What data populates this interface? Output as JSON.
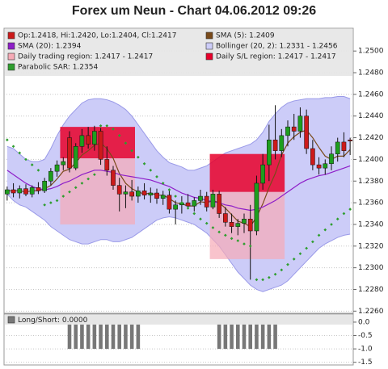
{
  "chart_data": [
    {
      "type": "candlestick",
      "title": "Forex um Neun - Chart 04.06.2012 09:26",
      "ylim": [
        1.2258,
        1.2521
      ],
      "yticks": [
        {
          "value": 1.226,
          "label": "1.2260"
        },
        {
          "value": 1.228,
          "label": "1.2280"
        },
        {
          "value": 1.23,
          "label": "1.2300"
        },
        {
          "value": 1.232,
          "label": "1.2320"
        },
        {
          "value": 1.234,
          "label": "1.2340"
        },
        {
          "value": 1.236,
          "label": "1.2360"
        },
        {
          "value": 1.238,
          "label": "1.2380"
        },
        {
          "value": 1.24,
          "label": "1.2400"
        },
        {
          "value": 1.242,
          "label": "1.2420"
        },
        {
          "value": 1.244,
          "label": "1.2440"
        },
        {
          "value": 1.246,
          "label": "1.2460"
        },
        {
          "value": 1.248,
          "label": "1.2480"
        },
        {
          "value": 1.25,
          "label": "1.2500"
        }
      ],
      "grid": true,
      "candles": {
        "name": "Op:1.2418, Hi:1.2420, Lo:1.2404, Cl:1.2417",
        "up_color": "#1e9e1e",
        "down_color": "#cc1a1a",
        "open": [
          1.2368,
          1.2372,
          1.2369,
          1.2373,
          1.2368,
          1.2374,
          1.2371,
          1.238,
          1.2389,
          1.2395,
          1.242,
          1.2392,
          1.2412,
          1.2422,
          1.2414,
          1.2426,
          1.24,
          1.239,
          1.2376,
          1.2368,
          1.237,
          1.2366,
          1.2371,
          1.2367,
          1.2369,
          1.2364,
          1.2367,
          1.2354,
          1.2358,
          1.236,
          1.2357,
          1.2362,
          1.2366,
          1.2356,
          1.2368,
          1.235,
          1.2342,
          1.2338,
          1.2341,
          1.2345,
          1.2334,
          1.2378,
          1.2395,
          1.2418,
          1.2408,
          1.2422,
          1.243,
          1.2426,
          1.244,
          1.241,
          1.2395,
          1.2392,
          1.2396,
          1.2405,
          1.2416,
          1.2418
        ],
        "high": [
          1.2375,
          1.2378,
          1.2376,
          1.2377,
          1.2376,
          1.2379,
          1.2383,
          1.2392,
          1.2399,
          1.2402,
          1.2426,
          1.2415,
          1.2428,
          1.243,
          1.2431,
          1.2429,
          1.2412,
          1.2394,
          1.2383,
          1.2376,
          1.2381,
          1.2375,
          1.2378,
          1.2374,
          1.2373,
          1.2371,
          1.2372,
          1.2362,
          1.2366,
          1.2368,
          1.2365,
          1.2372,
          1.237,
          1.2372,
          1.2371,
          1.2356,
          1.235,
          1.2345,
          1.235,
          1.2358,
          1.2385,
          1.2405,
          1.2432,
          1.245,
          1.2428,
          1.2436,
          1.2442,
          1.2448,
          1.2446,
          1.2418,
          1.2402,
          1.24,
          1.2412,
          1.242,
          1.2425,
          1.242
        ],
        "low": [
          1.2362,
          1.2365,
          1.2364,
          1.2366,
          1.2365,
          1.2368,
          1.2369,
          1.2376,
          1.2384,
          1.239,
          1.2388,
          1.239,
          1.2406,
          1.241,
          1.2408,
          1.2395,
          1.2385,
          1.2372,
          1.2352,
          1.2355,
          1.2362,
          1.236,
          1.2363,
          1.236,
          1.2359,
          1.2358,
          1.235,
          1.234,
          1.235,
          1.2354,
          1.2352,
          1.2358,
          1.2352,
          1.2354,
          1.2346,
          1.2338,
          1.2332,
          1.233,
          1.2332,
          1.2289,
          1.233,
          1.2372,
          1.238,
          1.24,
          1.2402,
          1.2412,
          1.2418,
          1.242,
          1.2405,
          1.239,
          1.2386,
          1.2386,
          1.239,
          1.2398,
          1.2402,
          1.2404
        ],
        "close": [
          1.2372,
          1.2369,
          1.2373,
          1.2368,
          1.2374,
          1.2371,
          1.238,
          1.2389,
          1.2395,
          1.2398,
          1.2392,
          1.2412,
          1.2422,
          1.2414,
          1.2426,
          1.24,
          1.239,
          1.2376,
          1.2368,
          1.237,
          1.2366,
          1.2371,
          1.2367,
          1.2369,
          1.2364,
          1.2367,
          1.2354,
          1.2358,
          1.236,
          1.2357,
          1.2362,
          1.2366,
          1.2356,
          1.2368,
          1.235,
          1.2342,
          1.2338,
          1.2341,
          1.2345,
          1.2334,
          1.2378,
          1.2395,
          1.2418,
          1.2408,
          1.2422,
          1.243,
          1.2426,
          1.244,
          1.241,
          1.2395,
          1.2392,
          1.2396,
          1.2405,
          1.2416,
          1.2408,
          1.2417
        ]
      },
      "series": [
        {
          "name": "SMA (5): 1.2409",
          "color": "#7a4a1a",
          "values": [
            1.2371,
            1.2371,
            1.2371,
            1.237,
            1.2371,
            1.2371,
            1.2373,
            1.2376,
            1.2382,
            1.2389,
            1.2391,
            1.2397,
            1.2404,
            1.2408,
            1.2413,
            1.2415,
            1.241,
            1.2401,
            1.2387,
            1.2378,
            1.2373,
            1.237,
            1.2368,
            1.2369,
            1.2367,
            1.2367,
            1.2364,
            1.236,
            1.2359,
            1.2357,
            1.2357,
            1.2361,
            1.236,
            1.2362,
            1.236,
            1.2355,
            1.2349,
            1.2343,
            1.2341,
            1.2338,
            1.2347,
            1.2359,
            1.2374,
            1.2387,
            1.2404,
            1.2415,
            1.2421,
            1.2425,
            1.2427,
            1.242,
            1.2411,
            1.2403,
            1.24,
            1.2403,
            1.2403,
            1.2409
          ]
        },
        {
          "name": "SMA (20): 1.2394",
          "color": "#8e1ec8",
          "values": [
            1.239,
            1.2386,
            1.2382,
            1.2378,
            1.2375,
            1.2373,
            1.2372,
            1.2373,
            1.2375,
            1.2378,
            1.238,
            1.2383,
            1.2386,
            1.2388,
            1.239,
            1.239,
            1.2389,
            1.2388,
            1.2386,
            1.2385,
            1.2384,
            1.2383,
            1.2382,
            1.2381,
            1.2379,
            1.2377,
            1.2375,
            1.2372,
            1.2369,
            1.2367,
            1.2365,
            1.2364,
            1.2362,
            1.2361,
            1.236,
            1.2358,
            1.2357,
            1.2355,
            1.2354,
            1.2353,
            1.2354,
            1.2356,
            1.2359,
            1.2362,
            1.2366,
            1.237,
            1.2374,
            1.2378,
            1.2381,
            1.2383,
            1.2385,
            1.2386,
            1.2388,
            1.239,
            1.2392,
            1.2394
          ]
        }
      ],
      "bollinger": {
        "name": "Bollinger (20, 2): 1.2331 - 1.2456",
        "color": "#9a9ae8",
        "fill": "#ccccf8",
        "upper": [
          1.2412,
          1.241,
          1.2405,
          1.24,
          1.2398,
          1.2398,
          1.24,
          1.241,
          1.2422,
          1.2432,
          1.244,
          1.2446,
          1.2452,
          1.2455,
          1.2456,
          1.2456,
          1.2455,
          1.2453,
          1.245,
          1.2446,
          1.244,
          1.2432,
          1.2424,
          1.2416,
          1.2408,
          1.2402,
          1.2397,
          1.2395,
          1.2393,
          1.239,
          1.239,
          1.2392,
          1.2394,
          1.2398,
          1.2402,
          1.2406,
          1.2408,
          1.241,
          1.2412,
          1.2414,
          1.2418,
          1.2425,
          1.2435,
          1.2442,
          1.2448,
          1.2452,
          1.2454,
          1.2455,
          1.2456,
          1.2456,
          1.2456,
          1.2457,
          1.2457,
          1.2458,
          1.2458,
          1.2456
        ],
        "lower": [
          1.2368,
          1.2362,
          1.2358,
          1.2356,
          1.2352,
          1.2348,
          1.2344,
          1.2338,
          1.2334,
          1.233,
          1.2326,
          1.2324,
          1.2322,
          1.2322,
          1.2324,
          1.2326,
          1.2326,
          1.2324,
          1.2324,
          1.2326,
          1.2328,
          1.2332,
          1.2336,
          1.234,
          1.2344,
          1.2346,
          1.2347,
          1.2346,
          1.2344,
          1.2342,
          1.234,
          1.2336,
          1.2332,
          1.2326,
          1.232,
          1.2312,
          1.2304,
          1.2296,
          1.229,
          1.2284,
          1.228,
          1.2278,
          1.228,
          1.2282,
          1.2284,
          1.2288,
          1.2294,
          1.23,
          1.2306,
          1.2312,
          1.2318,
          1.2322,
          1.2325,
          1.2328,
          1.233,
          1.2331
        ]
      },
      "regions": {
        "trading_name": "Daily trading region: 1.2417 - 1.2417",
        "trading_color": "#f6aab6",
        "sl_name": "Daily S/L region: 1.2417 - 1.2417",
        "sl_color": "#e8002a",
        "blocks": [
          {
            "start": 8.5,
            "end": 20.5,
            "trading": [
              1.234,
              1.2401
            ],
            "sl": [
              1.2401,
              1.243
            ]
          },
          {
            "start": 32.5,
            "end": 44.5,
            "trading": [
              1.2308,
              1.237
            ],
            "sl": [
              1.237,
              1.2405
            ]
          }
        ]
      },
      "sar": {
        "name": "Parabolic SAR: 1.2354",
        "color": "#2e9e2e",
        "values": [
          1.2418,
          1.2412,
          1.2406,
          1.24,
          1.2395,
          1.239,
          1.2358,
          1.236,
          1.2362,
          1.2366,
          1.237,
          1.2374,
          1.2378,
          1.2382,
          1.2386,
          1.2431,
          1.2431,
          1.2428,
          1.2422,
          1.2415,
          1.2408,
          1.2402,
          1.2396,
          1.239,
          1.2384,
          1.2378,
          1.2372,
          1.2366,
          1.236,
          1.2355,
          1.235,
          1.2345,
          1.2341,
          1.2337,
          1.2333,
          1.233,
          1.2327,
          1.2325,
          1.2322,
          1.232,
          1.2289,
          1.2289,
          1.2291,
          1.2294,
          1.2298,
          1.2303,
          1.2308,
          1.2313,
          1.2318,
          1.2324,
          1.233,
          1.2335,
          1.234,
          1.2345,
          1.235,
          1.2354
        ]
      }
    },
    {
      "type": "bar",
      "ylim": [
        -1.6,
        0.3
      ],
      "yticks": [
        {
          "value": 0,
          "label": "0.0"
        },
        -0.5,
        {
          "value": -1,
          "label": "-1.0"
        },
        -1.5
      ],
      "grid": true,
      "series": [
        {
          "name": "Long/Short: 0.0000",
          "color": "#777777",
          "values": [
            0,
            0,
            0,
            0,
            0,
            0,
            0,
            0,
            0,
            0,
            -1,
            -1,
            -1,
            -1,
            -1,
            -1,
            -1,
            -1,
            -1,
            -1,
            -1,
            -1,
            0,
            0,
            0,
            0,
            0,
            0,
            0,
            0,
            0,
            0,
            0,
            0,
            -1,
            -1,
            -1,
            -1,
            -1,
            -1,
            -1,
            -1,
            -1,
            -1,
            0,
            0,
            0,
            0,
            0,
            0,
            0,
            0,
            0,
            0,
            0,
            0
          ]
        }
      ]
    }
  ]
}
